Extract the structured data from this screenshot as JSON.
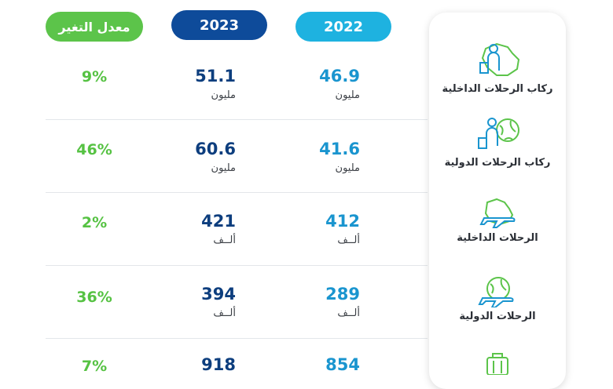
{
  "columns": {
    "change": "معدل التغير",
    "y2023": "2023",
    "y2022": "2022"
  },
  "rows": [
    {
      "label": "ركاب الرحلات الداخلية",
      "v2022": "46.9",
      "u2022": "مليون",
      "v2023": "51.1",
      "u2023": "مليون",
      "change": "9%",
      "icon": "domestic-passenger-icon"
    },
    {
      "label": "ركاب الرحلات الدولية",
      "v2022": "41.6",
      "u2022": "مليون",
      "v2023": "60.6",
      "u2023": "مليون",
      "change": "46%",
      "icon": "international-passenger-icon"
    },
    {
      "label": "الرحلات الداخلية",
      "v2022": "412",
      "u2022": "ألــف",
      "v2023": "421",
      "u2023": "ألــف",
      "change": "2%",
      "icon": "domestic-flights-icon"
    },
    {
      "label": "الرحلات الدولية",
      "v2022": "289",
      "u2022": "ألــف",
      "v2023": "394",
      "u2023": "ألــف",
      "change": "36%",
      "icon": "international-flights-icon"
    },
    {
      "label": "",
      "v2022": "854",
      "u2022": "",
      "v2023": "918",
      "u2023": "",
      "change": "7%",
      "icon": "luggage-icon"
    }
  ],
  "colors": {
    "change": "#5cc44a",
    "y2023": "#0e4b9a",
    "y2022": "#1eb2e0"
  }
}
